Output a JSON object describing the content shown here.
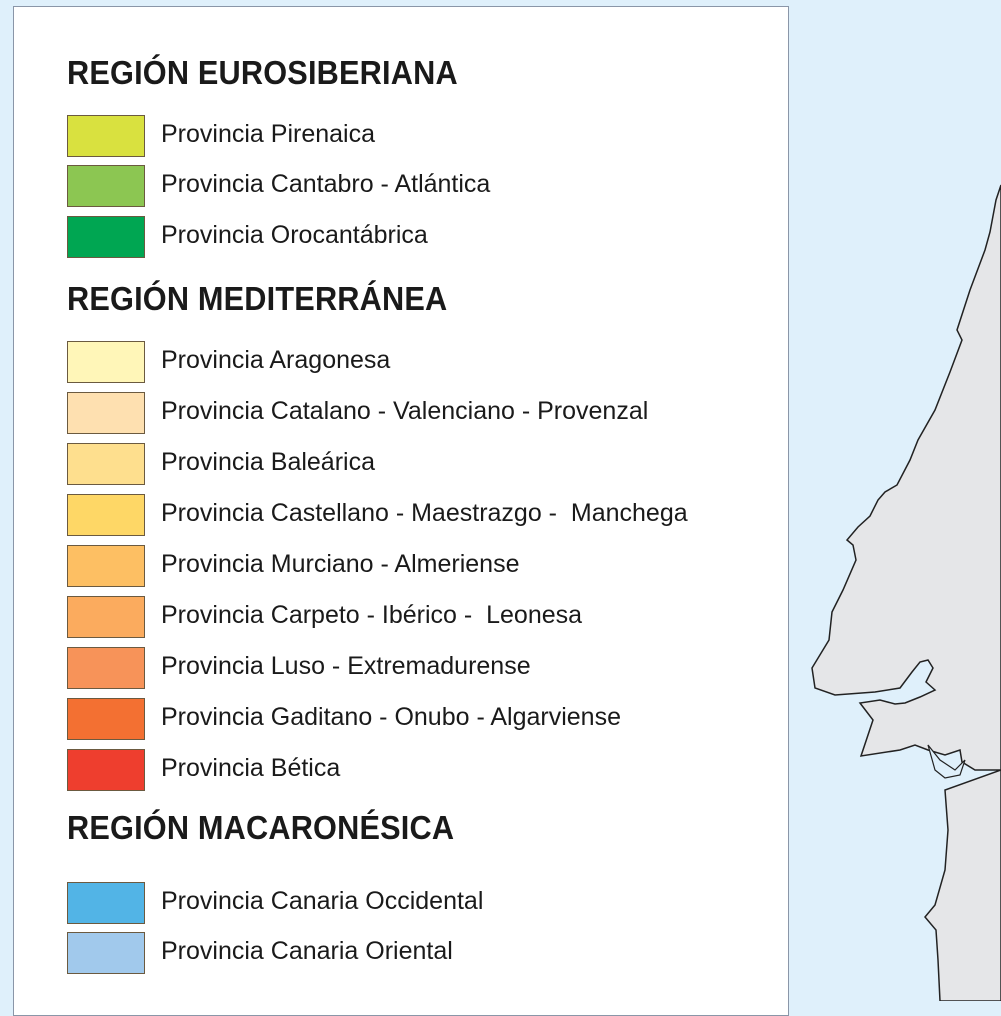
{
  "legend": {
    "regions": [
      {
        "title": "REGIÓN EUROSIBERIANA",
        "provinces": [
          {
            "label": "Provincia Pirenaica",
            "color": "#d9e13f"
          },
          {
            "label": "Provincia Cantabro - Atlántica",
            "color": "#8cc652"
          },
          {
            "label": "Provincia Orocantábrica",
            "color": "#00a652"
          }
        ]
      },
      {
        "title": "REGIÓN MEDITERRÁNEA",
        "provinces": [
          {
            "label": "Provincia Aragonesa",
            "color": "#fff6b8"
          },
          {
            "label": "Provincia Catalano - Valenciano - Provenzal",
            "color": "#fee0b0"
          },
          {
            "label": "Provincia Baleárica",
            "color": "#fedf8e"
          },
          {
            "label": "Provincia Castellano - Maestrazgo -  Manchega",
            "color": "#fed766"
          },
          {
            "label": "Provincia Murciano - Almeriense",
            "color": "#fdbf63"
          },
          {
            "label": "Provincia Carpeto - Ibérico -  Leonesa",
            "color": "#fbab5e"
          },
          {
            "label": "Provincia Luso - Extremadurense",
            "color": "#f79359"
          },
          {
            "label": "Provincia Gaditano - Onubo - Algarviense",
            "color": "#f37032"
          },
          {
            "label": "Provincia Bética",
            "color": "#ee3e2e"
          }
        ]
      },
      {
        "title": "REGIÓN MACARONÉSICA",
        "provinces": [
          {
            "label": "Provincia Canaria Occidental",
            "color": "#52b4e6"
          },
          {
            "label": "Provincia Canaria Oriental",
            "color": "#a1c9ec"
          }
        ]
      }
    ]
  },
  "map": {
    "sea_color": "#dff0fb",
    "land_color": "#e5e6e8",
    "coast_color": "#222222"
  }
}
